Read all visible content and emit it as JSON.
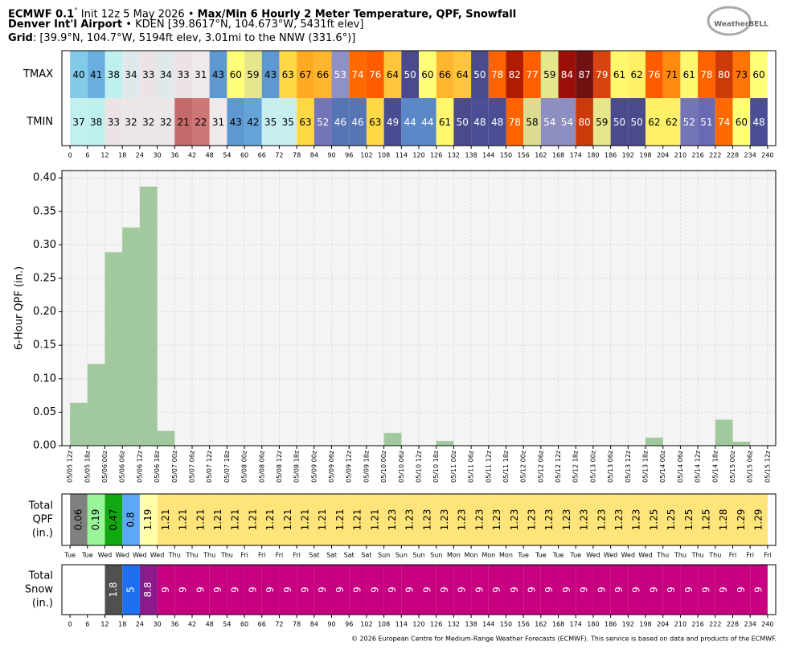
{
  "header": {
    "model": "ECMWF 0.1",
    "degree": "°",
    "init": "Init 12z 5 May 2026 •",
    "product": "Max/Min 6 Hourly 2 Meter Temperature, QPF, Snowfall",
    "station": "Denver Int'l Airport",
    "station_info": "• KDEN [39.8617°N, 104.673°W, 5431ft elev]",
    "grid_label": "Grid",
    "grid_info": ": [39.9°N, 104.7°W, 5194ft elev, 3.01mi to the NNW (331.6°)]",
    "logo": "WeatherBELL"
  },
  "chart_data": [
    {
      "type": "heatmap",
      "xlim": [
        -2.8,
        242.8
      ],
      "xticks": [
        0,
        6,
        12,
        18,
        24,
        30,
        36,
        42,
        48,
        54,
        60,
        66,
        72,
        78,
        84,
        90,
        96,
        102,
        108,
        114,
        120,
        126,
        132,
        138,
        144,
        150,
        156,
        162,
        168,
        174,
        180,
        186,
        192,
        198,
        204,
        210,
        216,
        222,
        228,
        234,
        240
      ],
      "series": [
        {
          "name": "TMAX",
          "values": [
            40,
            41,
            38,
            34,
            33,
            34,
            33,
            31,
            43,
            60,
            59,
            43,
            63,
            67,
            66,
            53,
            74,
            76,
            64,
            50,
            60,
            66,
            64,
            50,
            78,
            82,
            77,
            59,
            84,
            87,
            79,
            61,
            62,
            76,
            71,
            61,
            78,
            80,
            73,
            60
          ]
        },
        {
          "name": "TMIN",
          "values": [
            37,
            38,
            33,
            32,
            32,
            32,
            21,
            22,
            31,
            43,
            42,
            35,
            35,
            63,
            52,
            46,
            46,
            63,
            49,
            44,
            44,
            61,
            50,
            48,
            48,
            78,
            58,
            54,
            54,
            80,
            59,
            50,
            50,
            62,
            62,
            52,
            51,
            74,
            60,
            48
          ]
        }
      ]
    },
    {
      "type": "histogram",
      "ylabel": "6-Hour QPF (in.)",
      "color": "#a1c99d",
      "grid": true,
      "xlim": [
        -2.8,
        242.8
      ],
      "ylim": [
        0,
        0.411
      ],
      "bins": [
        0,
        6,
        12,
        18,
        24,
        30,
        36,
        42,
        48,
        54,
        60,
        66,
        72,
        78,
        84,
        90,
        96,
        102,
        108,
        114,
        120,
        126,
        132,
        138,
        144,
        150,
        156,
        162,
        168,
        174,
        180,
        186,
        192,
        198,
        204,
        210,
        216,
        222,
        228,
        234,
        240
      ],
      "values": [
        0.064,
        0.122,
        0.289,
        0.326,
        0.387,
        0.022,
        0,
        0,
        0,
        0,
        0,
        0,
        0,
        0,
        0,
        0,
        0,
        0,
        0.019,
        0,
        0,
        0.007,
        0,
        0,
        0,
        0,
        0,
        0,
        0,
        0,
        0,
        0,
        0,
        0.012,
        0,
        0,
        0,
        0.039,
        0.006,
        0
      ],
      "yticks": [
        {
          "value": 0,
          "label": "0.00"
        },
        {
          "value": 0.05,
          "label": "0.05"
        },
        {
          "value": 0.1,
          "label": "0.10"
        },
        {
          "value": 0.15,
          "label": "0.15"
        },
        {
          "value": 0.2,
          "label": "0.20"
        },
        {
          "value": 0.25,
          "label": "0.25"
        },
        {
          "value": 0.3,
          "label": "0.30"
        },
        {
          "value": 0.35,
          "label": "0.35"
        },
        {
          "value": 0.4,
          "label": "0.40"
        }
      ],
      "xticks": [
        {
          "value": 0,
          "label": "05/05 12z"
        },
        {
          "value": 6,
          "label": "05/05 18z"
        },
        {
          "value": 12,
          "label": "05/06 00z"
        },
        {
          "value": 18,
          "label": "05/06 06z"
        },
        {
          "value": 24,
          "label": "05/06 12z"
        },
        {
          "value": 30,
          "label": "05/06 18z"
        },
        {
          "value": 36,
          "label": "05/07 00z"
        },
        {
          "value": 42,
          "label": "05/07 06z"
        },
        {
          "value": 48,
          "label": "05/07 12z"
        },
        {
          "value": 54,
          "label": "05/07 18z"
        },
        {
          "value": 60,
          "label": "05/08 00z"
        },
        {
          "value": 66,
          "label": "05/08 06z"
        },
        {
          "value": 72,
          "label": "05/08 12z"
        },
        {
          "value": 78,
          "label": "05/08 18z"
        },
        {
          "value": 84,
          "label": "05/09 00z"
        },
        {
          "value": 90,
          "label": "05/09 06z"
        },
        {
          "value": 96,
          "label": "05/09 12z"
        },
        {
          "value": 102,
          "label": "05/09 18z"
        },
        {
          "value": 108,
          "label": "05/10 00z"
        },
        {
          "value": 114,
          "label": "05/10 06z"
        },
        {
          "value": 120,
          "label": "05/10 12z"
        },
        {
          "value": 126,
          "label": "05/10 18z"
        },
        {
          "value": 132,
          "label": "05/11 00z"
        },
        {
          "value": 138,
          "label": "05/11 06z"
        },
        {
          "value": 144,
          "label": "05/11 12z"
        },
        {
          "value": 150,
          "label": "05/11 18z"
        },
        {
          "value": 156,
          "label": "05/12 00z"
        },
        {
          "value": 162,
          "label": "05/12 06z"
        },
        {
          "value": 168,
          "label": "05/12 12z"
        },
        {
          "value": 174,
          "label": "05/12 18z"
        },
        {
          "value": 180,
          "label": "05/13 00z"
        },
        {
          "value": 186,
          "label": "05/13 06z"
        },
        {
          "value": 192,
          "label": "05/13 12z"
        },
        {
          "value": 198,
          "label": "05/13 18z"
        },
        {
          "value": 204,
          "label": "05/14 00z"
        },
        {
          "value": 210,
          "label": "05/14 06z"
        },
        {
          "value": 216,
          "label": "05/14 12z"
        },
        {
          "value": 222,
          "label": "05/14 18z"
        },
        {
          "value": 228,
          "label": "05/15 00z"
        },
        {
          "value": 234,
          "label": "05/15 06z"
        },
        {
          "value": 240,
          "label": "05/15 12z"
        }
      ]
    },
    {
      "type": "strip",
      "kind": "qpf",
      "ylabel": [
        "Total",
        "QPF",
        "(in.)"
      ],
      "xlim": [
        -2.8,
        242.8
      ],
      "values": [
        0.06,
        0.19,
        0.47,
        0.8,
        1.19,
        1.21,
        1.21,
        1.21,
        1.21,
        1.21,
        1.21,
        1.21,
        1.21,
        1.21,
        1.21,
        1.21,
        1.21,
        1.21,
        1.23,
        1.23,
        1.23,
        1.23,
        1.23,
        1.23,
        1.23,
        1.23,
        1.23,
        1.23,
        1.23,
        1.23,
        1.23,
        1.23,
        1.23,
        1.25,
        1.25,
        1.25,
        1.25,
        1.28,
        1.29,
        1.29
      ],
      "xticks": [
        {
          "value": 0,
          "label": "Tue"
        },
        {
          "value": 6,
          "label": "Tue"
        },
        {
          "value": 12,
          "label": "Wed"
        },
        {
          "value": 18,
          "label": "Wed"
        },
        {
          "value": 24,
          "label": "Wed"
        },
        {
          "value": 30,
          "label": "Wed"
        },
        {
          "value": 36,
          "label": "Thu"
        },
        {
          "value": 42,
          "label": "Thu"
        },
        {
          "value": 48,
          "label": "Thu"
        },
        {
          "value": 54,
          "label": "Thu"
        },
        {
          "value": 60,
          "label": "Fri"
        },
        {
          "value": 66,
          "label": "Fri"
        },
        {
          "value": 72,
          "label": "Fri"
        },
        {
          "value": 78,
          "label": "Fri"
        },
        {
          "value": 84,
          "label": "Sat"
        },
        {
          "value": 90,
          "label": "Sat"
        },
        {
          "value": 96,
          "label": "Sat"
        },
        {
          "value": 102,
          "label": "Sat"
        },
        {
          "value": 108,
          "label": "Sun"
        },
        {
          "value": 114,
          "label": "Sun"
        },
        {
          "value": 120,
          "label": "Sun"
        },
        {
          "value": 126,
          "label": "Sun"
        },
        {
          "value": 132,
          "label": "Mon"
        },
        {
          "value": 138,
          "label": "Mon"
        },
        {
          "value": 144,
          "label": "Mon"
        },
        {
          "value": 150,
          "label": "Mon"
        },
        {
          "value": 156,
          "label": "Tue"
        },
        {
          "value": 162,
          "label": "Tue"
        },
        {
          "value": 168,
          "label": "Tue"
        },
        {
          "value": 174,
          "label": "Tue"
        },
        {
          "value": 180,
          "label": "Wed"
        },
        {
          "value": 186,
          "label": "Wed"
        },
        {
          "value": 192,
          "label": "Wed"
        },
        {
          "value": 198,
          "label": "Wed"
        },
        {
          "value": 204,
          "label": "Thu"
        },
        {
          "value": 210,
          "label": "Thu"
        },
        {
          "value": 216,
          "label": "Thu"
        },
        {
          "value": 222,
          "label": "Thu"
        },
        {
          "value": 228,
          "label": "Fri"
        },
        {
          "value": 234,
          "label": "Fri"
        },
        {
          "value": 240,
          "label": "Fri"
        }
      ]
    },
    {
      "type": "strip",
      "kind": "snow",
      "ylabel": [
        "Total",
        "Snow",
        "(in.)"
      ],
      "xlim": [
        -2.8,
        242.8
      ],
      "values": [
        null,
        null,
        1.8,
        5,
        8.8,
        9,
        9,
        9,
        9,
        9,
        9,
        9,
        9,
        9,
        9,
        9,
        9,
        9,
        9,
        9,
        9,
        9,
        9,
        9,
        9,
        9,
        9,
        9,
        9,
        9,
        9,
        9,
        9,
        9,
        9,
        9,
        9,
        9,
        9,
        9
      ],
      "xticks": [
        0,
        6,
        12,
        18,
        24,
        30,
        36,
        42,
        48,
        54,
        60,
        66,
        72,
        78,
        84,
        90,
        96,
        102,
        108,
        114,
        120,
        126,
        132,
        138,
        144,
        150,
        156,
        162,
        168,
        174,
        180,
        186,
        192,
        198,
        204,
        210,
        216,
        222,
        228,
        234,
        240
      ]
    }
  ],
  "footer": "© 2026 European Centre for Medium-Range Weather Forecasts (ECMWF). This service is based on data and products of the ECMWF."
}
